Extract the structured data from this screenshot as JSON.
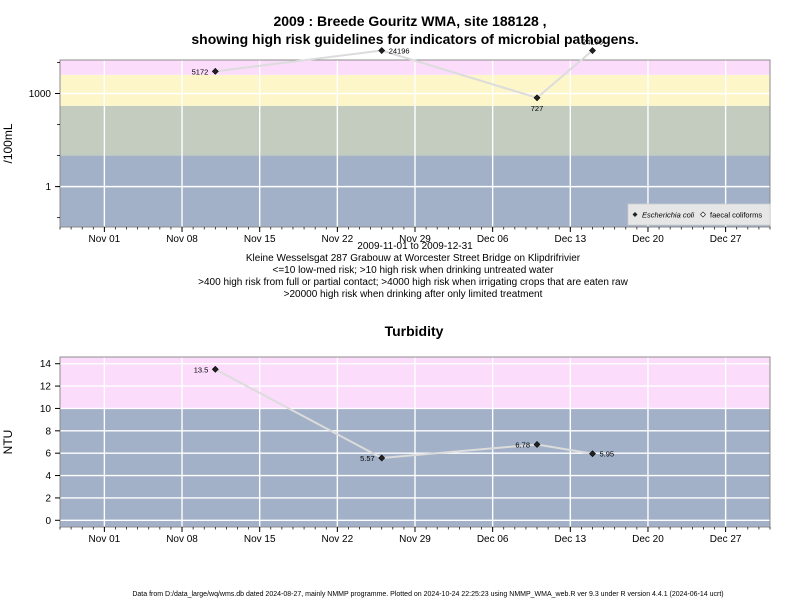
{
  "chart_data": [
    {
      "type": "line",
      "title": "2009 : Breede Gouritz WMA, site 188128 ,",
      "title2": "showing high risk guidelines for indicators of microbial pathogens.",
      "ylabel": "/100mL",
      "yscale": "log",
      "ylim": [
        0.05,
        12000
      ],
      "yticks": [
        {
          "v": 1,
          "label": "1"
        },
        {
          "v": 1000,
          "label": "1000"
        }
      ],
      "xlim": [
        "2009-10-28",
        "2009-12-31"
      ],
      "xticks": [
        "Nov 01",
        "Nov 08",
        "Nov 15",
        "Nov 22",
        "Nov 29",
        "Dec 06",
        "Dec 13",
        "Dec 20",
        "Dec 27"
      ],
      "bands": [
        {
          "from": 0.05,
          "to": 10,
          "color": "#a2b1c8"
        },
        {
          "from": 10,
          "to": 400,
          "color": "#c3ccbf"
        },
        {
          "from": 400,
          "to": 4000,
          "color": "#fdf6c9"
        },
        {
          "from": 4000,
          "to": 20000,
          "color": "#fbdcfb"
        },
        {
          "from": 20000,
          "to": 12000000,
          "color": "#fbc1cb"
        }
      ],
      "series": [
        {
          "name": "Escherichia coli",
          "points": [
            {
              "x": "2009-11-11",
              "y": 5172,
              "label": "5172",
              "label_side": "left"
            },
            {
              "x": "2009-11-26",
              "y": 24196,
              "label": "24196",
              "label_side": "right"
            },
            {
              "x": "2009-12-10",
              "y": 727,
              "label": "727",
              "label_side": "below"
            },
            {
              "x": "2009-12-15",
              "y": 24196,
              "label": "24196",
              "label_side": "above"
            }
          ]
        }
      ],
      "legend": {
        "position": "bottom-right",
        "entries": [
          "Escherichia coli",
          "faecal coliforms"
        ]
      },
      "caption": [
        "2009-11-01 to 2009-12-31",
        "Kleine Wesselsgat 287 Grabouw at Worcester Street Bridge on Klipdrifrivier",
        "<=10 low-med risk; >10 high risk when drinking untreated water",
        ">400 high risk from full or partial contact; >4000 high risk when irrigating crops that are eaten raw",
        ">20000 high risk when drinking after only limited treatment"
      ]
    },
    {
      "type": "line",
      "title": "Turbidity",
      "ylabel": "NTU",
      "ylim": [
        -0.6,
        14.6
      ],
      "yticks": [
        0,
        2,
        4,
        6,
        8,
        10,
        12,
        14
      ],
      "xlim": [
        "2009-10-28",
        "2009-12-31"
      ],
      "xticks": [
        "Nov 01",
        "Nov 08",
        "Nov 15",
        "Nov 22",
        "Nov 29",
        "Dec 06",
        "Dec 13",
        "Dec 20",
        "Dec 27"
      ],
      "bands": [
        {
          "from": -0.6,
          "to": 10,
          "color": "#a2b1c8"
        },
        {
          "from": 10,
          "to": 14.6,
          "color": "#fbdcfb"
        }
      ],
      "series": [
        {
          "name": "",
          "points": [
            {
              "x": "2009-11-11",
              "y": 13.5,
              "label": "13.5",
              "label_side": "left"
            },
            {
              "x": "2009-11-26",
              "y": 5.57,
              "label": "5.57",
              "label_side": "left"
            },
            {
              "x": "2009-12-10",
              "y": 6.78,
              "label": "6.78",
              "label_side": "left"
            },
            {
              "x": "2009-12-15",
              "y": 5.95,
              "label": "5.95",
              "label_side": "right"
            }
          ]
        }
      ]
    }
  ],
  "footer": "Data from D:/data_large/wq/wms.db dated 2024-08-27, mainly NMMP programme. Plotted on 2024-10-24 22:25:23 using NMMP_WMA_web.R ver 9.3 under R version 4.4.1 (2024-06-14 ucrt)"
}
